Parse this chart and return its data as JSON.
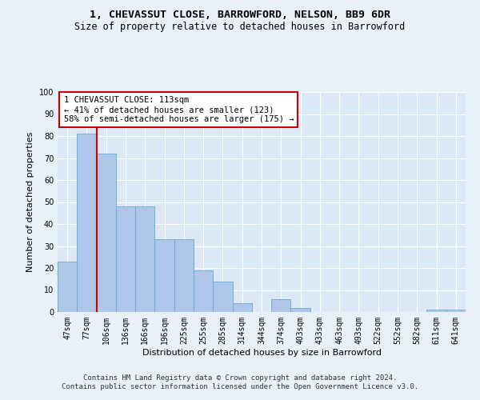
{
  "title": "1, CHEVASSUT CLOSE, BARROWFORD, NELSON, BB9 6DR",
  "subtitle": "Size of property relative to detached houses in Barrowford",
  "xlabel": "Distribution of detached houses by size in Barrowford",
  "ylabel": "Number of detached properties",
  "categories": [
    "47sqm",
    "77sqm",
    "106sqm",
    "136sqm",
    "166sqm",
    "196sqm",
    "225sqm",
    "255sqm",
    "285sqm",
    "314sqm",
    "344sqm",
    "374sqm",
    "403sqm",
    "433sqm",
    "463sqm",
    "493sqm",
    "522sqm",
    "552sqm",
    "582sqm",
    "611sqm",
    "641sqm"
  ],
  "values": [
    23,
    81,
    72,
    48,
    48,
    33,
    33,
    19,
    14,
    4,
    0,
    6,
    2,
    0,
    0,
    0,
    0,
    0,
    0,
    1,
    1
  ],
  "bar_color": "#aec6e8",
  "bar_edgecolor": "#6aaad4",
  "vline_color": "#cc0000",
  "vline_x_index": 1.5,
  "annotation_text": "1 CHEVASSUT CLOSE: 113sqm\n← 41% of detached houses are smaller (123)\n58% of semi-detached houses are larger (175) →",
  "annotation_box_color": "#cc0000",
  "ylim": [
    0,
    100
  ],
  "yticks": [
    0,
    10,
    20,
    30,
    40,
    50,
    60,
    70,
    80,
    90,
    100
  ],
  "footnote": "Contains HM Land Registry data © Crown copyright and database right 2024.\nContains public sector information licensed under the Open Government Licence v3.0.",
  "bg_color": "#e8f0f8",
  "plot_bg_color": "#dce8f5",
  "grid_color": "#ffffff",
  "title_fontsize": 9.5,
  "subtitle_fontsize": 8.5,
  "xlabel_fontsize": 8,
  "ylabel_fontsize": 8,
  "tick_fontsize": 7,
  "annotation_fontsize": 7.5,
  "footnote_fontsize": 6.5
}
